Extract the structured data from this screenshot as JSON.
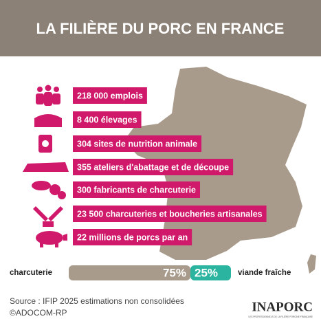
{
  "title": "LA FILIÈRE DU PORC EN FRANCE",
  "stats": [
    "218 000 emplois",
    "8 400 élevages",
    "304 sites de nutrition animale",
    "355 ateliers d'abattage et de découpe",
    "300 fabricants de charcuterie",
    "23 500 charcuteries et boucheries artisanales",
    "22 millions de porcs par an"
  ],
  "split": {
    "left_label": "charcuterie",
    "right_label": "viande fraîche",
    "segments": [
      {
        "value": 75,
        "label": "75%"
      },
      {
        "value": 25,
        "label": "25%"
      }
    ]
  },
  "source": [
    "Source : IFIP 2025 estimations non consolidées",
    "©ADOCOM-RP"
  ],
  "logo": {
    "name": "INAPORC",
    "tagline": "LES PROFESSIONNELS DE LA FILIÈRE PORCINE FRANÇAISE"
  }
}
